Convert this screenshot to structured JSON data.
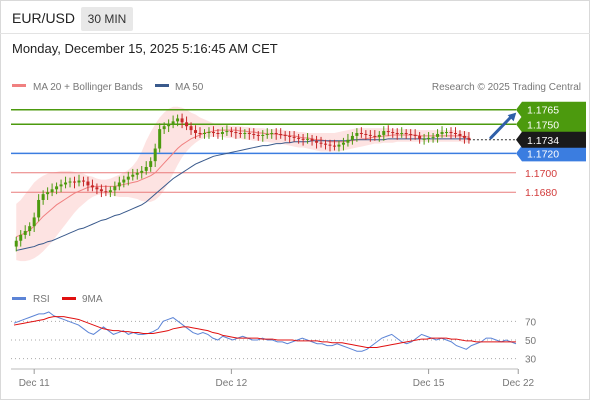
{
  "header": {
    "pair": "EUR/USD",
    "timeframe": "30 MIN",
    "timestamp": "Monday, December 15, 2025 5:16:45 AM CET"
  },
  "colors": {
    "resistance": "#4c9a0e",
    "pivot": "#3b7de0",
    "support": "#e97b7b",
    "up_candle": "#4c9a0e",
    "down_candle": "#c62828",
    "ma20": "#f08080",
    "ma50": "#3a5a8c",
    "rsi": "#5c84d6",
    "rsi_ma": "#e01010",
    "arrow": "#2f5fa8"
  },
  "chart_data": [
    {
      "type": "candlestick",
      "legend": [
        {
          "name": "MA 20 + Bollinger Bands",
          "color": "#f08080"
        },
        {
          "name": "MA 50",
          "color": "#3a5a8c"
        }
      ],
      "credit": "Research © 2025 Trading Central",
      "ylim": [
        1.1605,
        1.1775
      ],
      "x_ticks": [
        {
          "label": "Dec 11",
          "index": 4
        },
        {
          "label": "Dec 12",
          "index": 48
        },
        {
          "label": "Dec 15",
          "index": 92
        },
        {
          "label": "Dec 22",
          "index": 112
        }
      ],
      "n_slots": 112,
      "current_price": {
        "label": "1.1734",
        "value": 1.1734
      },
      "levels": [
        {
          "label": "1.1765",
          "value": 1.1765,
          "kind": "resistance"
        },
        {
          "label": "1.1750",
          "value": 1.175,
          "kind": "resistance"
        },
        {
          "label": "1.1720",
          "value": 1.172,
          "kind": "pivot"
        },
        {
          "label": "1.1700",
          "value": 1.17,
          "kind": "support"
        },
        {
          "label": "1.1680",
          "value": 1.168,
          "kind": "support"
        }
      ],
      "target_arrow": {
        "from": [
          105,
          1.1734
        ],
        "to": [
          112,
          1.1762
        ]
      },
      "closes": [
        1.163,
        1.1636,
        1.164,
        1.1645,
        1.1654,
        1.1672,
        1.1678,
        1.168,
        1.1683,
        1.1686,
        1.1688,
        1.169,
        1.1691,
        1.169,
        1.1692,
        1.1691,
        1.1687,
        1.1685,
        1.1683,
        1.1681,
        1.168,
        1.1682,
        1.1686,
        1.169,
        1.1693,
        1.1696,
        1.1698,
        1.17,
        1.1702,
        1.1706,
        1.1712,
        1.1725,
        1.1745,
        1.1748,
        1.175,
        1.1753,
        1.1756,
        1.1752,
        1.1748,
        1.1744,
        1.1741,
        1.174,
        1.1741,
        1.1742,
        1.1741,
        1.174,
        1.1742,
        1.1743,
        1.1742,
        1.1741,
        1.174,
        1.1741,
        1.174,
        1.1739,
        1.1738,
        1.1739,
        1.174,
        1.1741,
        1.174,
        1.1739,
        1.1738,
        1.1737,
        1.1736,
        1.1735,
        1.1734,
        1.1735,
        1.1733,
        1.1731,
        1.173,
        1.1729,
        1.1728,
        1.1727,
        1.1729,
        1.1731,
        1.1734,
        1.1738,
        1.1741,
        1.174,
        1.1739,
        1.1738,
        1.1737,
        1.1739,
        1.1743,
        1.1742,
        1.1741,
        1.174,
        1.1741,
        1.174,
        1.1739,
        1.1738,
        1.1735,
        1.1735,
        1.1736,
        1.1737,
        1.174,
        1.1742,
        1.1742,
        1.1741,
        1.174,
        1.1738,
        1.1736,
        1.1734
      ],
      "ma20": [
        1.1634,
        1.1636,
        1.1638,
        1.1641,
        1.1645,
        1.165,
        1.1655,
        1.1659,
        1.1663,
        1.1667,
        1.167,
        1.1673,
        1.1676,
        1.1679,
        1.1681,
        1.1683,
        1.1685,
        1.1686,
        1.1686,
        1.1686,
        1.1686,
        1.1686,
        1.1686,
        1.1687,
        1.1688,
        1.1689,
        1.169,
        1.1691,
        1.1693,
        1.1695,
        1.1697,
        1.17,
        1.1705,
        1.171,
        1.1715,
        1.172,
        1.1725,
        1.1729,
        1.1732,
        1.1735,
        1.1737,
        1.1739,
        1.1741,
        1.1742,
        1.1743,
        1.1744,
        1.1744,
        1.1744,
        1.1744,
        1.1744,
        1.1743,
        1.1743,
        1.1742,
        1.1742,
        1.1741,
        1.1741,
        1.174,
        1.174,
        1.174,
        1.1739,
        1.1739,
        1.1738,
        1.1738,
        1.1737,
        1.1736,
        1.1736,
        1.1735,
        1.1734,
        1.1734,
        1.1733,
        1.1732,
        1.1732,
        1.1732,
        1.1732,
        1.1733,
        1.1733,
        1.1734,
        1.1735,
        1.1735,
        1.1736,
        1.1737,
        1.1737,
        1.1738,
        1.1738,
        1.1739,
        1.1739,
        1.1739,
        1.1739,
        1.1739,
        1.1739,
        1.1738,
        1.1738,
        1.1738,
        1.1738,
        1.1738,
        1.1738,
        1.1738,
        1.1738,
        1.1738,
        1.1738,
        1.1737,
        1.1737
      ],
      "bb_upper": [
        1.1668,
        1.1672,
        1.1678,
        1.1684,
        1.169,
        1.1694,
        1.1697,
        1.1699,
        1.17,
        1.1701,
        1.1702,
        1.1702,
        1.1702,
        1.1701,
        1.17,
        1.1699,
        1.1697,
        1.1696,
        1.1694,
        1.1693,
        1.1693,
        1.1694,
        1.1696,
        1.1698,
        1.17,
        1.1703,
        1.1707,
        1.1713,
        1.1722,
        1.1733,
        1.1742,
        1.175,
        1.1757,
        1.1762,
        1.1766,
        1.1768,
        1.1768,
        1.1767,
        1.1765,
        1.1762,
        1.176,
        1.1757,
        1.1755,
        1.1753,
        1.1751,
        1.175,
        1.1749,
        1.1749,
        1.1748,
        1.1748,
        1.1748,
        1.1747,
        1.1747,
        1.1746,
        1.1746,
        1.1746,
        1.1745,
        1.1745,
        1.1745,
        1.1744,
        1.1744,
        1.1743,
        1.1743,
        1.1742,
        1.1742,
        1.1741,
        1.1741,
        1.1741,
        1.1741,
        1.1741,
        1.1741,
        1.1741,
        1.1742,
        1.1743,
        1.1744,
        1.1745,
        1.1746,
        1.1746,
        1.1746,
        1.1746,
        1.1746,
        1.1746,
        1.1746,
        1.1746,
        1.1745,
        1.1745,
        1.1745,
        1.1745,
        1.1745,
        1.1744,
        1.1744,
        1.1744,
        1.1744,
        1.1744,
        1.1744,
        1.1744,
        1.1744,
        1.1744,
        1.1744,
        1.1743,
        1.1743,
        1.1742
      ],
      "bb_lower": [
        1.161,
        1.1609,
        1.1609,
        1.161,
        1.1612,
        1.1615,
        1.1619,
        1.1624,
        1.1629,
        1.1635,
        1.1641,
        1.1647,
        1.1653,
        1.1659,
        1.1664,
        1.1668,
        1.1672,
        1.1675,
        1.1677,
        1.1678,
        1.1678,
        1.1677,
        1.1676,
        1.1675,
        1.1675,
        1.1675,
        1.1674,
        1.1673,
        1.1671,
        1.167,
        1.167,
        1.1672,
        1.1676,
        1.1682,
        1.169,
        1.1699,
        1.1708,
        1.1716,
        1.1722,
        1.1727,
        1.1731,
        1.1734,
        1.1736,
        1.1737,
        1.1737,
        1.1737,
        1.1737,
        1.1736,
        1.1736,
        1.1735,
        1.1735,
        1.1734,
        1.1734,
        1.1733,
        1.1733,
        1.1732,
        1.1732,
        1.1731,
        1.1731,
        1.173,
        1.1729,
        1.1728,
        1.1727,
        1.1726,
        1.1726,
        1.1725,
        1.1724,
        1.1723,
        1.1722,
        1.1722,
        1.1722,
        1.1722,
        1.1722,
        1.1723,
        1.1724,
        1.1725,
        1.1726,
        1.1727,
        1.1728,
        1.1729,
        1.173,
        1.173,
        1.1731,
        1.1731,
        1.1731,
        1.1732,
        1.1732,
        1.1732,
        1.1732,
        1.1732,
        1.1732,
        1.1732,
        1.1732,
        1.1732,
        1.1732,
        1.1732,
        1.1732,
        1.1732,
        1.1732,
        1.1732,
        1.1731,
        1.1731
      ],
      "ma50": [
        1.162,
        1.1621,
        1.1622,
        1.1623,
        1.1624,
        1.1626,
        1.1627,
        1.1629,
        1.163,
        1.1632,
        1.1634,
        1.1636,
        1.1638,
        1.164,
        1.1642,
        1.1643,
        1.1645,
        1.1647,
        1.1649,
        1.1651,
        1.1652,
        1.1654,
        1.1656,
        1.1657,
        1.1659,
        1.1661,
        1.1663,
        1.1665,
        1.1667,
        1.167,
        1.1674,
        1.1678,
        1.1682,
        1.1686,
        1.169,
        1.1694,
        1.1697,
        1.17,
        1.1703,
        1.1706,
        1.1709,
        1.1711,
        1.1713,
        1.1715,
        1.1717,
        1.1718,
        1.1719,
        1.172,
        1.1721,
        1.1722,
        1.1723,
        1.1724,
        1.1725,
        1.1726,
        1.1727,
        1.1728,
        1.1728,
        1.1729,
        1.173,
        1.173,
        1.1731,
        1.1731,
        1.1732,
        1.1732,
        1.1732,
        1.1732,
        1.1733,
        1.1733,
        1.1733,
        1.1733,
        1.1733,
        1.1733,
        1.1733,
        1.1733,
        1.1733,
        1.1734,
        1.1734,
        1.1734,
        1.1734,
        1.1734,
        1.1734,
        1.1734,
        1.1734,
        1.1735,
        1.1735,
        1.1735,
        1.1735,
        1.1735,
        1.1735,
        1.1735,
        1.1735,
        1.1735,
        1.1735,
        1.1735,
        1.1735,
        1.1735,
        1.1735,
        1.1735,
        1.1735,
        1.1735,
        1.1735,
        1.1735
      ]
    },
    {
      "type": "line",
      "legend": [
        {
          "name": "RSI",
          "color": "#5c84d6"
        },
        {
          "name": "9MA",
          "color": "#e01010"
        }
      ],
      "ylim": [
        20,
        80
      ],
      "y_ticks": [
        70,
        50,
        30
      ],
      "rsi": [
        68,
        70,
        72,
        74,
        76,
        78,
        78,
        80,
        76,
        74,
        72,
        70,
        68,
        66,
        62,
        58,
        56,
        60,
        64,
        60,
        56,
        58,
        60,
        56,
        58,
        56,
        56,
        57,
        59,
        62,
        70,
        72,
        74,
        70,
        66,
        62,
        58,
        56,
        58,
        56,
        52,
        50,
        54,
        52,
        50,
        52,
        54,
        52,
        50,
        50,
        52,
        50,
        50,
        48,
        48,
        46,
        48,
        50,
        52,
        50,
        48,
        46,
        46,
        44,
        44,
        46,
        44,
        42,
        40,
        38,
        38,
        40,
        44,
        48,
        52,
        54,
        56,
        52,
        48,
        46,
        48,
        52,
        56,
        54,
        52,
        50,
        52,
        50,
        48,
        44,
        42,
        40,
        44,
        46,
        48,
        52,
        52,
        50,
        48,
        50,
        48,
        46
      ],
      "ma9": [
        66,
        67,
        68,
        69,
        70,
        71,
        72,
        74,
        75,
        75,
        75,
        74,
        73,
        72,
        70,
        68,
        66,
        64,
        62,
        61,
        60,
        60,
        59,
        59,
        58,
        58,
        57,
        57,
        57,
        58,
        59,
        60,
        62,
        63,
        64,
        64,
        63,
        62,
        61,
        60,
        58,
        57,
        55,
        54,
        53,
        52,
        52,
        52,
        52,
        52,
        51,
        51,
        51,
        50,
        50,
        50,
        50,
        49,
        49,
        49,
        49,
        49,
        48,
        48,
        47,
        47,
        47,
        46,
        45,
        44,
        43,
        42,
        42,
        42,
        43,
        44,
        45,
        46,
        47,
        48,
        49,
        50,
        51,
        51,
        52,
        52,
        52,
        52,
        51,
        51,
        50,
        49,
        49,
        48,
        48,
        48,
        48,
        48,
        48,
        48,
        48,
        48
      ]
    }
  ]
}
